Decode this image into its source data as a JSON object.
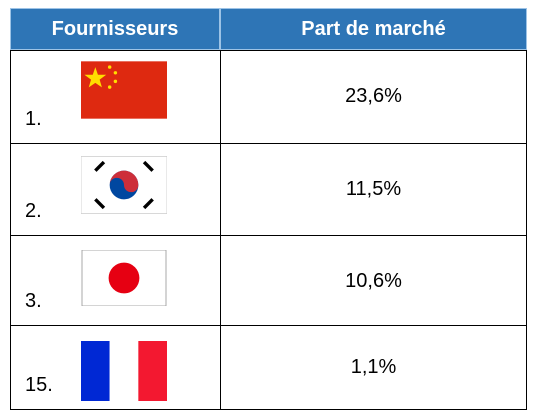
{
  "table": {
    "header": [
      "Fournisseurs",
      "Part de marché"
    ],
    "rows": [
      [
        "1.",
        "23,6%"
      ],
      [
        "2.",
        "11,5%"
      ],
      [
        "3.",
        "10,6%"
      ],
      [
        "15.",
        "1,1%"
      ]
    ]
  }
}
